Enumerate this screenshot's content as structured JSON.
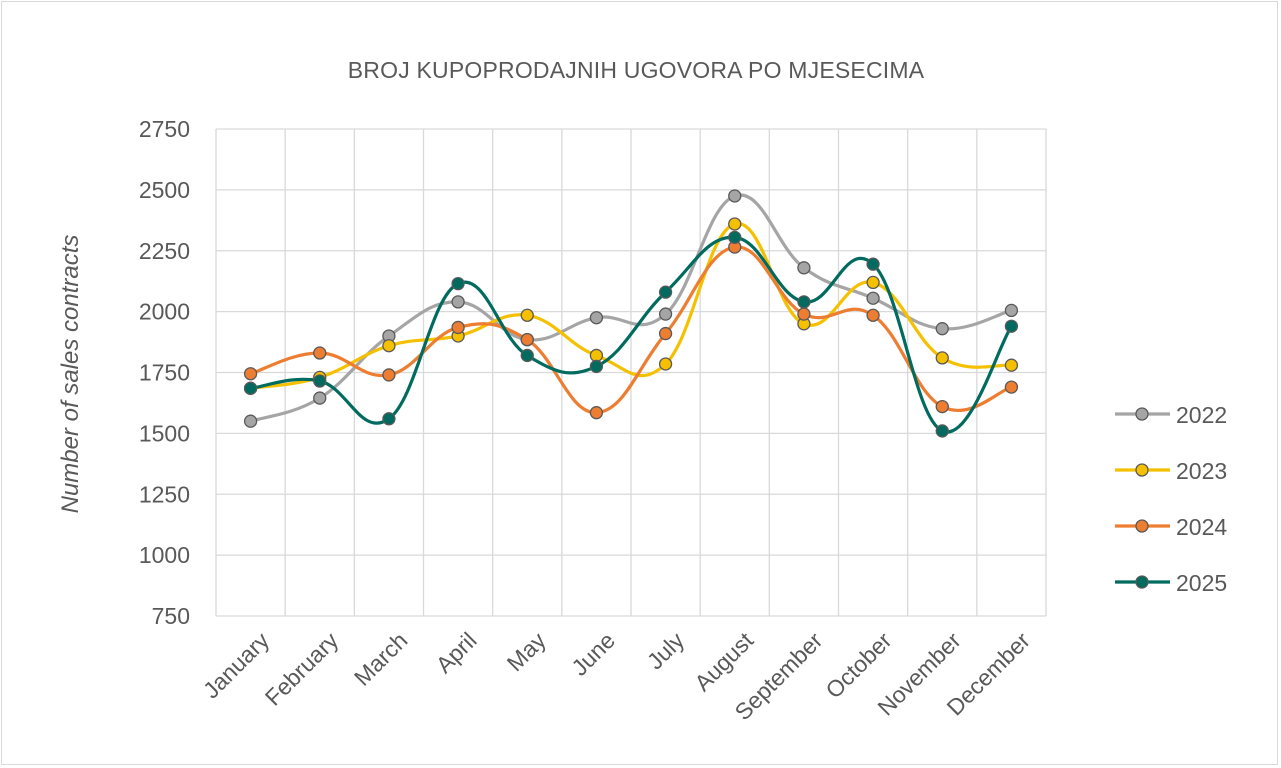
{
  "chart_data": {
    "type": "line",
    "title": "BROJ KUPOPRODAJNIH UGOVORA PO MJESECIMA",
    "xlabel": "",
    "ylabel": "Number of sales contracts",
    "ylim": [
      750,
      2750
    ],
    "ytick_step": 250,
    "grid": true,
    "legend": "right",
    "smooth": true,
    "categories": [
      "January",
      "February",
      "March",
      "April",
      "May",
      "June",
      "July",
      "August",
      "September",
      "October",
      "November",
      "December"
    ],
    "series": [
      {
        "name": "2022",
        "color": "#a5a5a5",
        "values": [
          1550,
          1645,
          1900,
          2040,
          1885,
          1975,
          1990,
          2475,
          2180,
          2055,
          1930,
          2005
        ]
      },
      {
        "name": "2023",
        "color": "#f5c000",
        "values": [
          1685,
          1730,
          1860,
          1900,
          1985,
          1820,
          1785,
          2360,
          1950,
          2120,
          1810,
          1780
        ]
      },
      {
        "name": "2024",
        "color": "#ed7d31",
        "values": [
          1745,
          1830,
          1740,
          1935,
          1885,
          1585,
          1910,
          2265,
          1990,
          1985,
          1610,
          1690
        ]
      },
      {
        "name": "2025",
        "color": "#006b5e",
        "values": [
          1685,
          1715,
          1560,
          2115,
          1820,
          1775,
          2080,
          2305,
          2040,
          2195,
          1510,
          1940
        ]
      }
    ]
  }
}
